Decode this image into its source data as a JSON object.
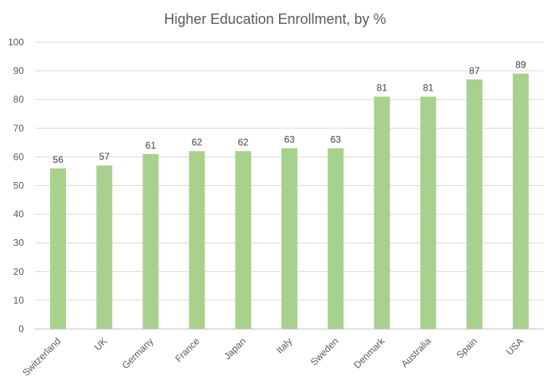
{
  "chart_data": {
    "type": "bar",
    "title": "Higher Education Enrollment, by %",
    "xlabel": "",
    "ylabel": "",
    "categories": [
      "Switzerland",
      "UK",
      "Germany",
      "France",
      "Japan",
      "Italy",
      "Sweden",
      "Denmark",
      "Australia",
      "Spain",
      "USA"
    ],
    "values": [
      56,
      57,
      61,
      62,
      62,
      63,
      63,
      81,
      81,
      87,
      89
    ],
    "ylim": [
      0,
      100
    ],
    "yticks": [
      0,
      10,
      20,
      30,
      40,
      50,
      60,
      70,
      80,
      90,
      100
    ],
    "grid": true,
    "legend": "none",
    "bar_color": "#a9d18e",
    "data_labels": true
  }
}
